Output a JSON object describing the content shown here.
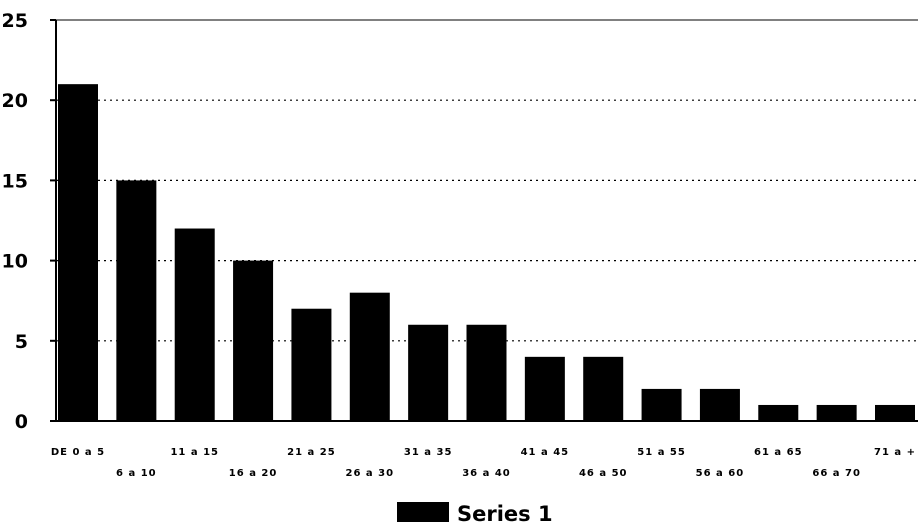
{
  "chart_data": {
    "type": "bar",
    "categories": [
      "DE 0 a 5",
      "6 a 10",
      "11 a 15",
      "16 a 20",
      "21 a 25",
      "26 a 30",
      "31 a 35",
      "36 a 40",
      "41 a 45",
      "46 a 50",
      "51 a 55",
      "56 a 60",
      "61 a 65",
      "66 a 70",
      "71 a +"
    ],
    "series": [
      {
        "name": "Series 1",
        "values": [
          21,
          15,
          12,
          10,
          7,
          8,
          6,
          6,
          4,
          4,
          2,
          2,
          1,
          1,
          1
        ]
      }
    ],
    "ylim": [
      0,
      25
    ],
    "yticks": [
      "0",
      "5",
      "10",
      "15",
      "20",
      "25"
    ],
    "grid": "horizontal-dotted",
    "legend_placement": "bottom-center",
    "colors": {
      "bar": "#000000",
      "grid": "#000000",
      "background": "#ffffff"
    }
  }
}
